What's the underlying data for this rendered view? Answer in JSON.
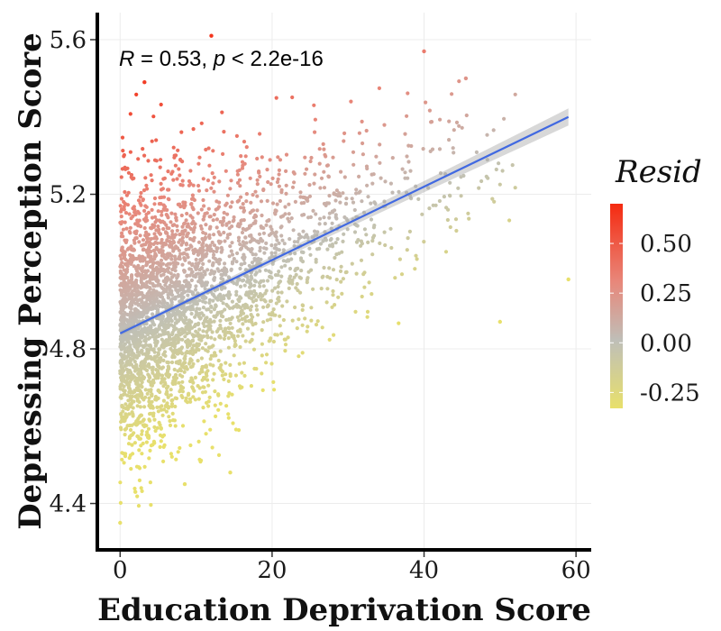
{
  "chart_data": {
    "type": "scatter",
    "title": "",
    "xlabel": "Education Deprivation Score",
    "ylabel": "Depressing Perception Score",
    "xlim": [
      -3,
      62
    ],
    "ylim": [
      4.28,
      5.67
    ],
    "x_ticks": [
      0,
      20,
      40,
      60
    ],
    "x_tick_labels": [
      "0",
      "20",
      "40",
      "60"
    ],
    "y_ticks": [
      4.4,
      4.8,
      5.2,
      5.6
    ],
    "y_tick_labels": [
      "4.4",
      "4.8",
      "5.2",
      "5.6"
    ],
    "grid": true,
    "annotation": {
      "r_symbol": "R",
      "r_eq": " = 0.53, ",
      "p_symbol": "p",
      "p_rest": " < 2.2e-16"
    },
    "regression_line": {
      "x": [
        0,
        59
      ],
      "y": [
        4.84,
        5.4
      ],
      "color": "#4169e1",
      "confidence_band": true
    },
    "legend": {
      "title": "Resid",
      "placement": "right",
      "min": -0.33,
      "max": 0.7,
      "ticks": [
        0.5,
        0.25,
        0.0,
        -0.25
      ],
      "tick_labels": [
        "0.50",
        "0.25",
        "0.00",
        "-0.25"
      ],
      "colors": {
        "high": "#f52a10",
        "mid_high": "#e8877a",
        "mid": "#bfbfb8",
        "low": "#e8e06b"
      }
    },
    "series": [
      {
        "point_count": 5500,
        "x_range": [
          0,
          59
        ],
        "y_range": [
          4.35,
          5.61
        ],
        "color_by": "Resid",
        "outliers": [
          {
            "x": 12,
            "y": 5.61
          },
          {
            "x": 0,
            "y": 4.35
          },
          {
            "x": 40,
            "y": 5.57
          },
          {
            "x": 45.5,
            "y": 5.5
          },
          {
            "x": 59,
            "y": 4.98
          },
          {
            "x": 50,
            "y": 4.87
          },
          {
            "x": 3.2,
            "y": 5.49
          },
          {
            "x": 2,
            "y": 4.43
          },
          {
            "x": 14.5,
            "y": 4.48
          },
          {
            "x": 8.5,
            "y": 4.45
          }
        ]
      }
    ]
  }
}
